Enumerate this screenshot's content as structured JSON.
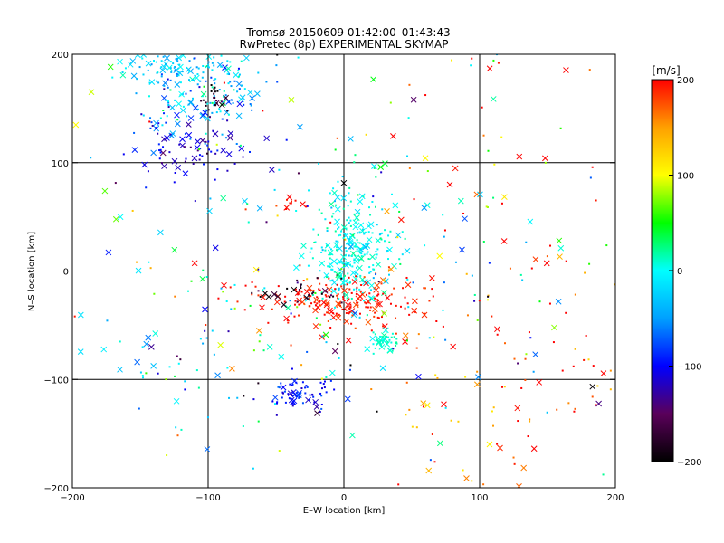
{
  "chart_data": {
    "type": "scatter",
    "title": "Tromsø 20150609 01:42:00–01:43:43",
    "subtitle": "RwPretec (8p) EXPERIMENTAL SKYMAP",
    "xlabel": "E–W location [km]",
    "ylabel": "N–S location [km]",
    "xlim": [
      -200,
      200
    ],
    "ylim": [
      -200,
      200
    ],
    "xticks": [
      -200,
      -100,
      0,
      100,
      200
    ],
    "yticks": [
      -200,
      -100,
      0,
      100,
      200
    ],
    "grid": true,
    "colorbar": {
      "label": "[m/s]",
      "range": [
        -200,
        200
      ],
      "ticks": [
        -200,
        -100,
        0,
        100,
        200
      ],
      "colormap": "rainbow-black-to-red",
      "stops": [
        "#000000",
        "#5a005a",
        "#0000ff",
        "#00a0ff",
        "#00ffff",
        "#00ff00",
        "#ffff00",
        "#ffa000",
        "#ff0000"
      ]
    },
    "marker_types": [
      "dot",
      "cross"
    ],
    "clusters": [
      {
        "center": [
          -105,
          165
        ],
        "spread": [
          22,
          22
        ],
        "velocity_mean": -40,
        "velocity_spread": 40,
        "count": 170
      },
      {
        "center": [
          -95,
          158
        ],
        "spread": [
          5,
          6
        ],
        "velocity_mean": -180,
        "velocity_spread": 15,
        "count": 25
      },
      {
        "center": [
          -115,
          115
        ],
        "spread": [
          18,
          18
        ],
        "velocity_mean": -110,
        "velocity_spread": 15,
        "count": 75
      },
      {
        "center": [
          -130,
          190
        ],
        "spread": [
          20,
          8
        ],
        "velocity_mean": -20,
        "velocity_spread": 20,
        "count": 70
      },
      {
        "center": [
          5,
          20
        ],
        "spread": [
          15,
          25
        ],
        "velocity_mean": 0,
        "velocity_spread": 14,
        "count": 260
      },
      {
        "center": [
          -5,
          -28
        ],
        "spread": [
          30,
          12
        ],
        "velocity_mean": 195,
        "velocity_spread": 12,
        "count": 200
      },
      {
        "center": [
          -35,
          -20
        ],
        "spread": [
          20,
          8
        ],
        "velocity_mean": -185,
        "velocity_spread": 18,
        "count": 30
      },
      {
        "center": [
          30,
          -65
        ],
        "spread": [
          6,
          4
        ],
        "velocity_mean": 10,
        "velocity_spread": 6,
        "count": 40
      },
      {
        "center": [
          -30,
          -115
        ],
        "spread": [
          14,
          9
        ],
        "velocity_mean": -100,
        "velocity_spread": 15,
        "count": 70
      },
      {
        "center": [
          -40,
          62
        ],
        "spread": [
          4,
          3
        ],
        "velocity_mean": 195,
        "velocity_spread": 8,
        "count": 10
      },
      {
        "center": [
          -130,
          -80
        ],
        "spread": [
          30,
          25
        ],
        "velocity_mean": -20,
        "velocity_spread": 60,
        "count": 35
      },
      {
        "center": [
          120,
          -110
        ],
        "spread": [
          60,
          60
        ],
        "velocity_mean": 170,
        "velocity_spread": 40,
        "count": 90
      },
      {
        "center": [
          100,
          50
        ],
        "spread": [
          50,
          100
        ],
        "velocity_mean": 160,
        "velocity_spread": 60,
        "count": 70
      },
      {
        "center": [
          -40,
          30
        ],
        "spread": [
          60,
          80
        ],
        "velocity_mean": 0,
        "velocity_spread": 50,
        "count": 80
      },
      {
        "center": [
          0,
          0
        ],
        "spread": [
          110,
          110
        ],
        "velocity_mean": 20,
        "velocity_spread": 120,
        "count": 180
      }
    ]
  }
}
